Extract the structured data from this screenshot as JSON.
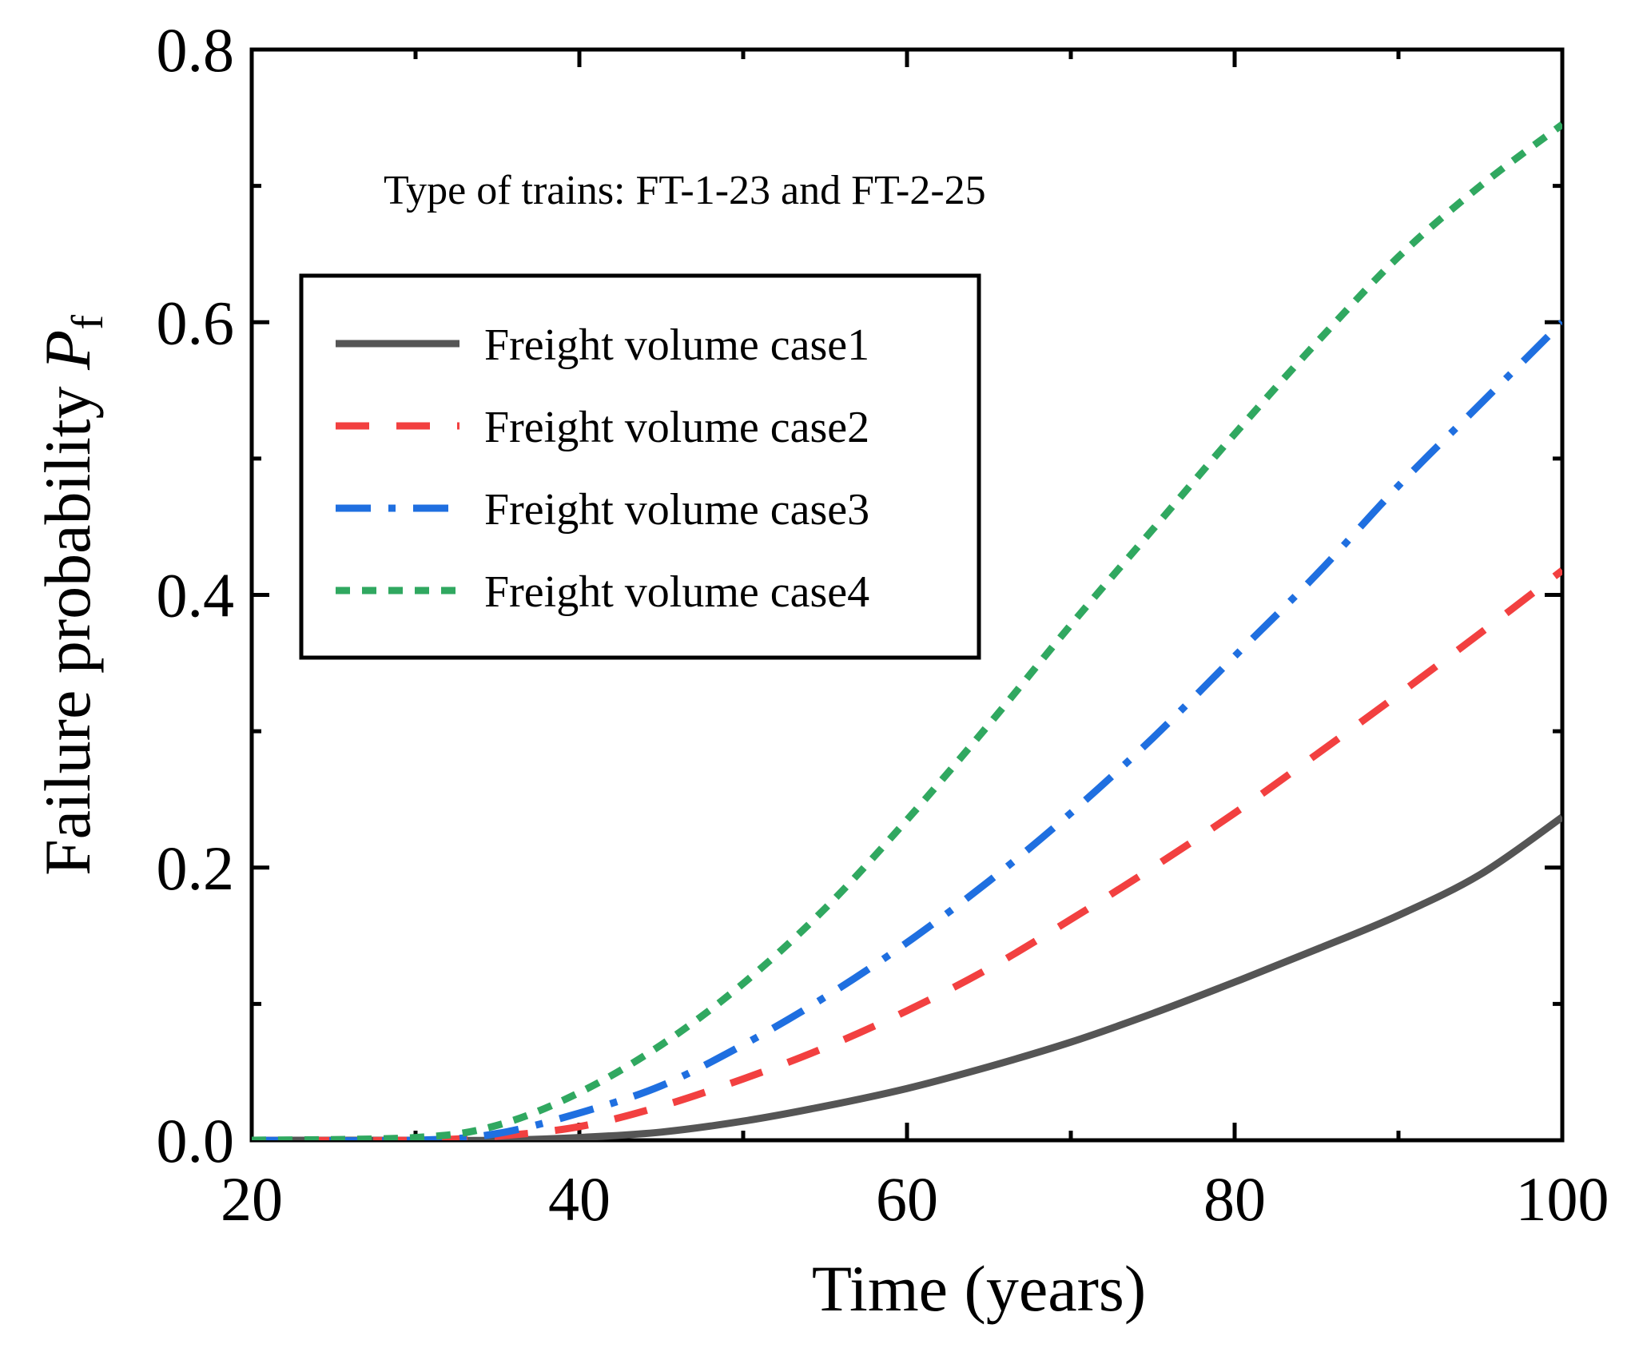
{
  "chart_data": {
    "type": "line",
    "xlabel": "Time  (years)",
    "ylabel_main": "Failure probability ",
    "ylabel_symbol": "P",
    "ylabel_subscript": "f",
    "annotation": "Type of trains: FT-1-23 and FT-2-25",
    "xlim": [
      20,
      100
    ],
    "ylim": [
      0,
      0.8
    ],
    "x_ticks": [
      20,
      40,
      60,
      80,
      100
    ],
    "x_tick_labels": [
      "20",
      "40",
      "60",
      "80",
      "100"
    ],
    "y_ticks": [
      0.0,
      0.2,
      0.4,
      0.6,
      0.8
    ],
    "y_tick_labels": [
      "0.0",
      "0.2",
      "0.4",
      "0.6",
      "0.8"
    ],
    "x_minor_ticks": [
      30,
      50,
      70,
      90
    ],
    "y_minor_ticks": [
      0.1,
      0.3,
      0.5,
      0.7
    ],
    "legend_position": "upper-left",
    "grid": false,
    "x": [
      20,
      30,
      35,
      40,
      45,
      50,
      55,
      60,
      65,
      70,
      75,
      80,
      85,
      90,
      95,
      100
    ],
    "series": [
      {
        "name": "Freight volume case1",
        "color": "#555555",
        "dash": "solid",
        "values": [
          0,
          0,
          0,
          0.002,
          0.006,
          0.014,
          0.025,
          0.038,
          0.054,
          0.072,
          0.093,
          0.116,
          0.14,
          0.165,
          0.195,
          0.237
        ]
      },
      {
        "name": "Freight volume case2",
        "color": "#f24040",
        "dash": "dash",
        "values": [
          0,
          0,
          0.003,
          0.01,
          0.025,
          0.045,
          0.068,
          0.095,
          0.126,
          0.162,
          0.2,
          0.24,
          0.283,
          0.327,
          0.372,
          0.418
        ]
      },
      {
        "name": "Freight volume case3",
        "color": "#1f6fe0",
        "dash": "dashdot",
        "values": [
          0,
          0,
          0.005,
          0.02,
          0.04,
          0.07,
          0.105,
          0.145,
          0.19,
          0.24,
          0.295,
          0.355,
          0.415,
          0.48,
          0.54,
          0.6
        ]
      },
      {
        "name": "Freight volume case4",
        "color": "#30a860",
        "dash": "shortdash",
        "values": [
          0,
          0.002,
          0.011,
          0.035,
          0.07,
          0.115,
          0.17,
          0.235,
          0.305,
          0.378,
          0.448,
          0.518,
          0.585,
          0.648,
          0.7,
          0.745
        ]
      }
    ]
  }
}
